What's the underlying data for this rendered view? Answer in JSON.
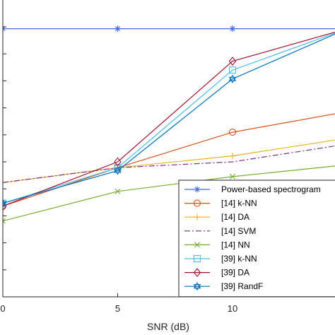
{
  "chart_data": {
    "type": "line",
    "title": "",
    "xlabel": "SNR (dB)",
    "ylabel": "",
    "x": [
      0,
      5,
      10,
      15
    ],
    "x_tick_labels": [
      "0",
      "5",
      "10"
    ],
    "xlim": [
      0,
      15
    ],
    "ylim": [
      0,
      1
    ],
    "grid": false,
    "legend_position": "bottom-right",
    "series": [
      {
        "name": "Power-based spectrogram",
        "color": "#4169e1",
        "marker": "asterisk",
        "dash": "solid",
        "values": [
          0.99,
          0.99,
          0.99,
          0.99
        ]
      },
      {
        "name": "[14] k-NN",
        "color": "#d95319",
        "marker": "circle",
        "dash": "solid",
        "values": [
          0.39,
          0.52,
          0.64,
          0.71
        ]
      },
      {
        "name": "[14] DA",
        "color": "#edb120",
        "marker": "plus",
        "dash": "solid",
        "values": [
          0.47,
          0.52,
          0.56,
          0.62
        ]
      },
      {
        "name": "[14] SVM",
        "color": "#7e2f8e",
        "marker": "none",
        "dash": "dashdot",
        "values": [
          0.47,
          0.52,
          0.54,
          0.6
        ]
      },
      {
        "name": "[14] NN",
        "color": "#77ac30",
        "marker": "x",
        "dash": "solid",
        "values": [
          0.34,
          0.44,
          0.49,
          0.53
        ]
      },
      {
        "name": "[39] k-NN",
        "color": "#4dbeee",
        "marker": "square",
        "dash": "solid",
        "values": [
          0.4,
          0.52,
          0.85,
          0.99
        ]
      },
      {
        "name": "[39] DA",
        "color": "#a2142f",
        "marker": "diamond",
        "dash": "solid",
        "values": [
          0.39,
          0.54,
          0.88,
          0.99
        ]
      },
      {
        "name": "[39] RandF",
        "color": "#0072bd",
        "marker": "hexagram",
        "dash": "solid",
        "values": [
          0.4,
          0.51,
          0.82,
          0.99
        ]
      }
    ]
  }
}
